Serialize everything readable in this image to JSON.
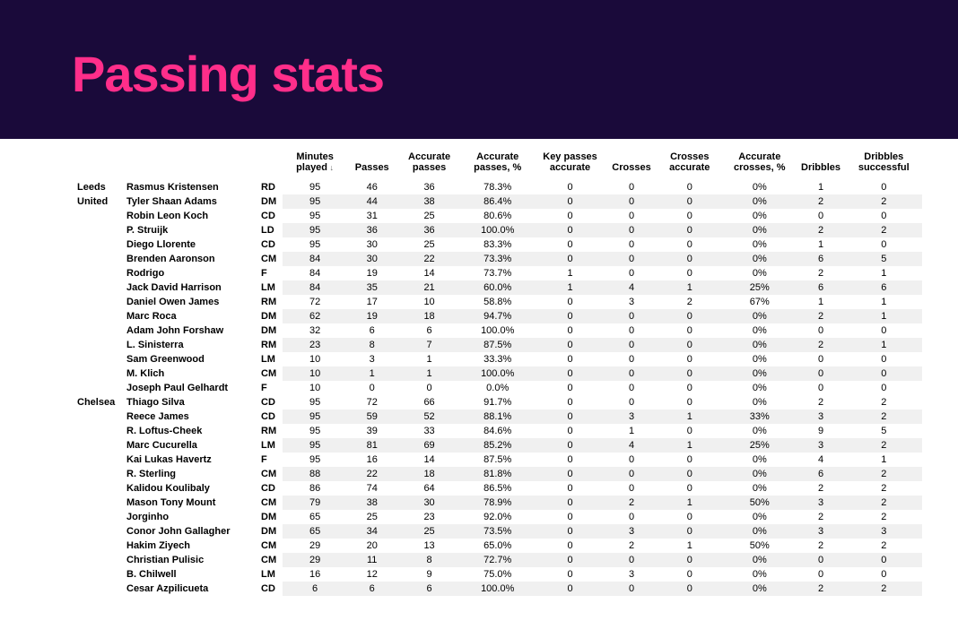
{
  "title": "Passing stats",
  "header_bg": "#1a0a3a",
  "title_color": "#ff2e8a",
  "shade_bg": "#f0f0f0",
  "columns": [
    "Minutes played",
    "Passes",
    "Accurate passes",
    "Accurate passes, %",
    "Key passes accurate",
    "Crosses",
    "Crosses accurate",
    "Accurate crosses, %",
    "Dribbles",
    "Dribbles successful"
  ],
  "sorted_column_index": 0,
  "teams": [
    {
      "name": "Leeds United",
      "rows": [
        {
          "player": "Rasmus Kristensen",
          "pos": "RD",
          "vals": [
            "95",
            "46",
            "36",
            "78.3%",
            "0",
            "0",
            "0",
            "0%",
            "1",
            "0"
          ]
        },
        {
          "player": "Tyler Shaan Adams",
          "pos": "DM",
          "vals": [
            "95",
            "44",
            "38",
            "86.4%",
            "0",
            "0",
            "0",
            "0%",
            "2",
            "2"
          ]
        },
        {
          "player": "Robin Leon Koch",
          "pos": "CD",
          "vals": [
            "95",
            "31",
            "25",
            "80.6%",
            "0",
            "0",
            "0",
            "0%",
            "0",
            "0"
          ]
        },
        {
          "player": "P. Struijk",
          "pos": "LD",
          "vals": [
            "95",
            "36",
            "36",
            "100.0%",
            "0",
            "0",
            "0",
            "0%",
            "2",
            "2"
          ]
        },
        {
          "player": "Diego Llorente",
          "pos": "CD",
          "vals": [
            "95",
            "30",
            "25",
            "83.3%",
            "0",
            "0",
            "0",
            "0%",
            "1",
            "0"
          ]
        },
        {
          "player": "Brenden Aaronson",
          "pos": "CM",
          "vals": [
            "84",
            "30",
            "22",
            "73.3%",
            "0",
            "0",
            "0",
            "0%",
            "6",
            "5"
          ]
        },
        {
          "player": "Rodrigo",
          "pos": "F",
          "vals": [
            "84",
            "19",
            "14",
            "73.7%",
            "1",
            "0",
            "0",
            "0%",
            "2",
            "1"
          ]
        },
        {
          "player": "Jack David Harrison",
          "pos": "LM",
          "vals": [
            "84",
            "35",
            "21",
            "60.0%",
            "1",
            "4",
            "1",
            "25%",
            "6",
            "6"
          ]
        },
        {
          "player": "Daniel Owen James",
          "pos": "RM",
          "vals": [
            "72",
            "17",
            "10",
            "58.8%",
            "0",
            "3",
            "2",
            "67%",
            "1",
            "1"
          ]
        },
        {
          "player": "Marc Roca",
          "pos": "DM",
          "vals": [
            "62",
            "19",
            "18",
            "94.7%",
            "0",
            "0",
            "0",
            "0%",
            "2",
            "1"
          ]
        },
        {
          "player": "Adam John Forshaw",
          "pos": "DM",
          "vals": [
            "32",
            "6",
            "6",
            "100.0%",
            "0",
            "0",
            "0",
            "0%",
            "0",
            "0"
          ]
        },
        {
          "player": "L. Sinisterra",
          "pos": "RM",
          "vals": [
            "23",
            "8",
            "7",
            "87.5%",
            "0",
            "0",
            "0",
            "0%",
            "2",
            "1"
          ]
        },
        {
          "player": "Sam Greenwood",
          "pos": "LM",
          "vals": [
            "10",
            "3",
            "1",
            "33.3%",
            "0",
            "0",
            "0",
            "0%",
            "0",
            "0"
          ]
        },
        {
          "player": "M. Klich",
          "pos": "CM",
          "vals": [
            "10",
            "1",
            "1",
            "100.0%",
            "0",
            "0",
            "0",
            "0%",
            "0",
            "0"
          ]
        },
        {
          "player": "Joseph Paul Gelhardt",
          "pos": "F",
          "vals": [
            "10",
            "0",
            "0",
            "0.0%",
            "0",
            "0",
            "0",
            "0%",
            "0",
            "0"
          ]
        }
      ]
    },
    {
      "name": "Chelsea",
      "rows": [
        {
          "player": "Thiago Silva",
          "pos": "CD",
          "vals": [
            "95",
            "72",
            "66",
            "91.7%",
            "0",
            "0",
            "0",
            "0%",
            "2",
            "2"
          ]
        },
        {
          "player": "Reece James",
          "pos": "CD",
          "vals": [
            "95",
            "59",
            "52",
            "88.1%",
            "0",
            "3",
            "1",
            "33%",
            "3",
            "2"
          ]
        },
        {
          "player": "R. Loftus-Cheek",
          "pos": "RM",
          "vals": [
            "95",
            "39",
            "33",
            "84.6%",
            "0",
            "1",
            "0",
            "0%",
            "9",
            "5"
          ]
        },
        {
          "player": "Marc Cucurella",
          "pos": "LM",
          "vals": [
            "95",
            "81",
            "69",
            "85.2%",
            "0",
            "4",
            "1",
            "25%",
            "3",
            "2"
          ]
        },
        {
          "player": "Kai Lukas Havertz",
          "pos": "F",
          "vals": [
            "95",
            "16",
            "14",
            "87.5%",
            "0",
            "0",
            "0",
            "0%",
            "4",
            "1"
          ]
        },
        {
          "player": "R. Sterling",
          "pos": "CM",
          "vals": [
            "88",
            "22",
            "18",
            "81.8%",
            "0",
            "0",
            "0",
            "0%",
            "6",
            "2"
          ]
        },
        {
          "player": "Kalidou Koulibaly",
          "pos": "CD",
          "vals": [
            "86",
            "74",
            "64",
            "86.5%",
            "0",
            "0",
            "0",
            "0%",
            "2",
            "2"
          ]
        },
        {
          "player": "Mason Tony Mount",
          "pos": "CM",
          "vals": [
            "79",
            "38",
            "30",
            "78.9%",
            "0",
            "2",
            "1",
            "50%",
            "3",
            "2"
          ]
        },
        {
          "player": "Jorginho",
          "pos": "DM",
          "vals": [
            "65",
            "25",
            "23",
            "92.0%",
            "0",
            "0",
            "0",
            "0%",
            "2",
            "2"
          ]
        },
        {
          "player": "Conor John Gallagher",
          "pos": "DM",
          "vals": [
            "65",
            "34",
            "25",
            "73.5%",
            "0",
            "3",
            "0",
            "0%",
            "3",
            "3"
          ]
        },
        {
          "player": "Hakim Ziyech",
          "pos": "CM",
          "vals": [
            "29",
            "20",
            "13",
            "65.0%",
            "0",
            "2",
            "1",
            "50%",
            "2",
            "2"
          ]
        },
        {
          "player": "Christian Pulisic",
          "pos": "CM",
          "vals": [
            "29",
            "11",
            "8",
            "72.7%",
            "0",
            "0",
            "0",
            "0%",
            "0",
            "0"
          ]
        },
        {
          "player": "B. Chilwell",
          "pos": "LM",
          "vals": [
            "16",
            "12",
            "9",
            "75.0%",
            "0",
            "3",
            "0",
            "0%",
            "0",
            "0"
          ]
        },
        {
          "player": "Cesar Azpilicueta",
          "pos": "CD",
          "vals": [
            "6",
            "6",
            "6",
            "100.0%",
            "0",
            "0",
            "0",
            "0%",
            "2",
            "2"
          ]
        }
      ]
    }
  ]
}
